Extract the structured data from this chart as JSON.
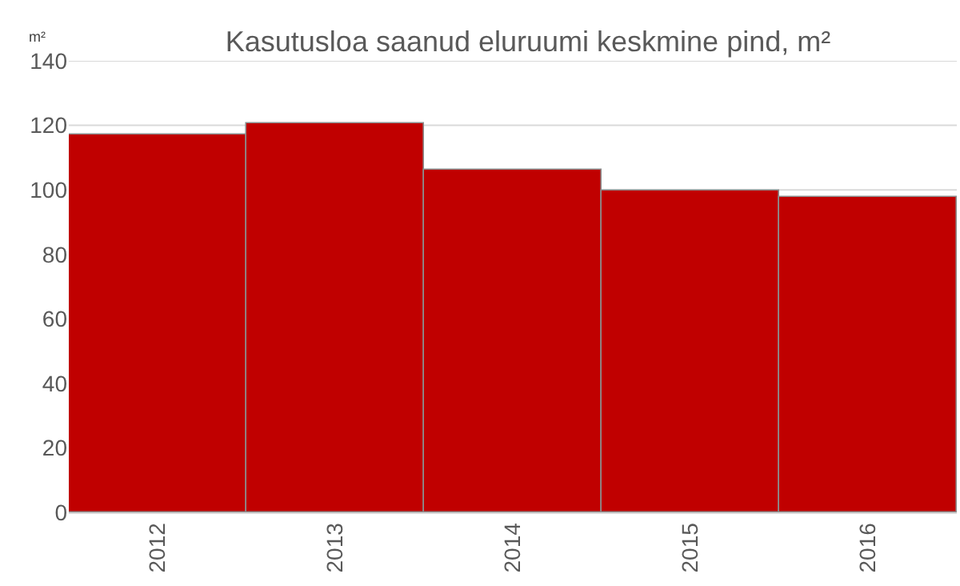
{
  "chart_data": {
    "type": "bar",
    "title": "Kasutusloa saanud eluruumi keskmine pind, m²",
    "ylabel": "m²",
    "categories": [
      "2012",
      "2013",
      "2014",
      "2015",
      "2016"
    ],
    "values": [
      117,
      120.5,
      106,
      100,
      98
    ],
    "color": "#c00000",
    "ylim": [
      0,
      140
    ],
    "yticks": [
      0,
      20,
      40,
      60,
      80,
      100,
      120,
      140
    ],
    "grid": "y"
  }
}
